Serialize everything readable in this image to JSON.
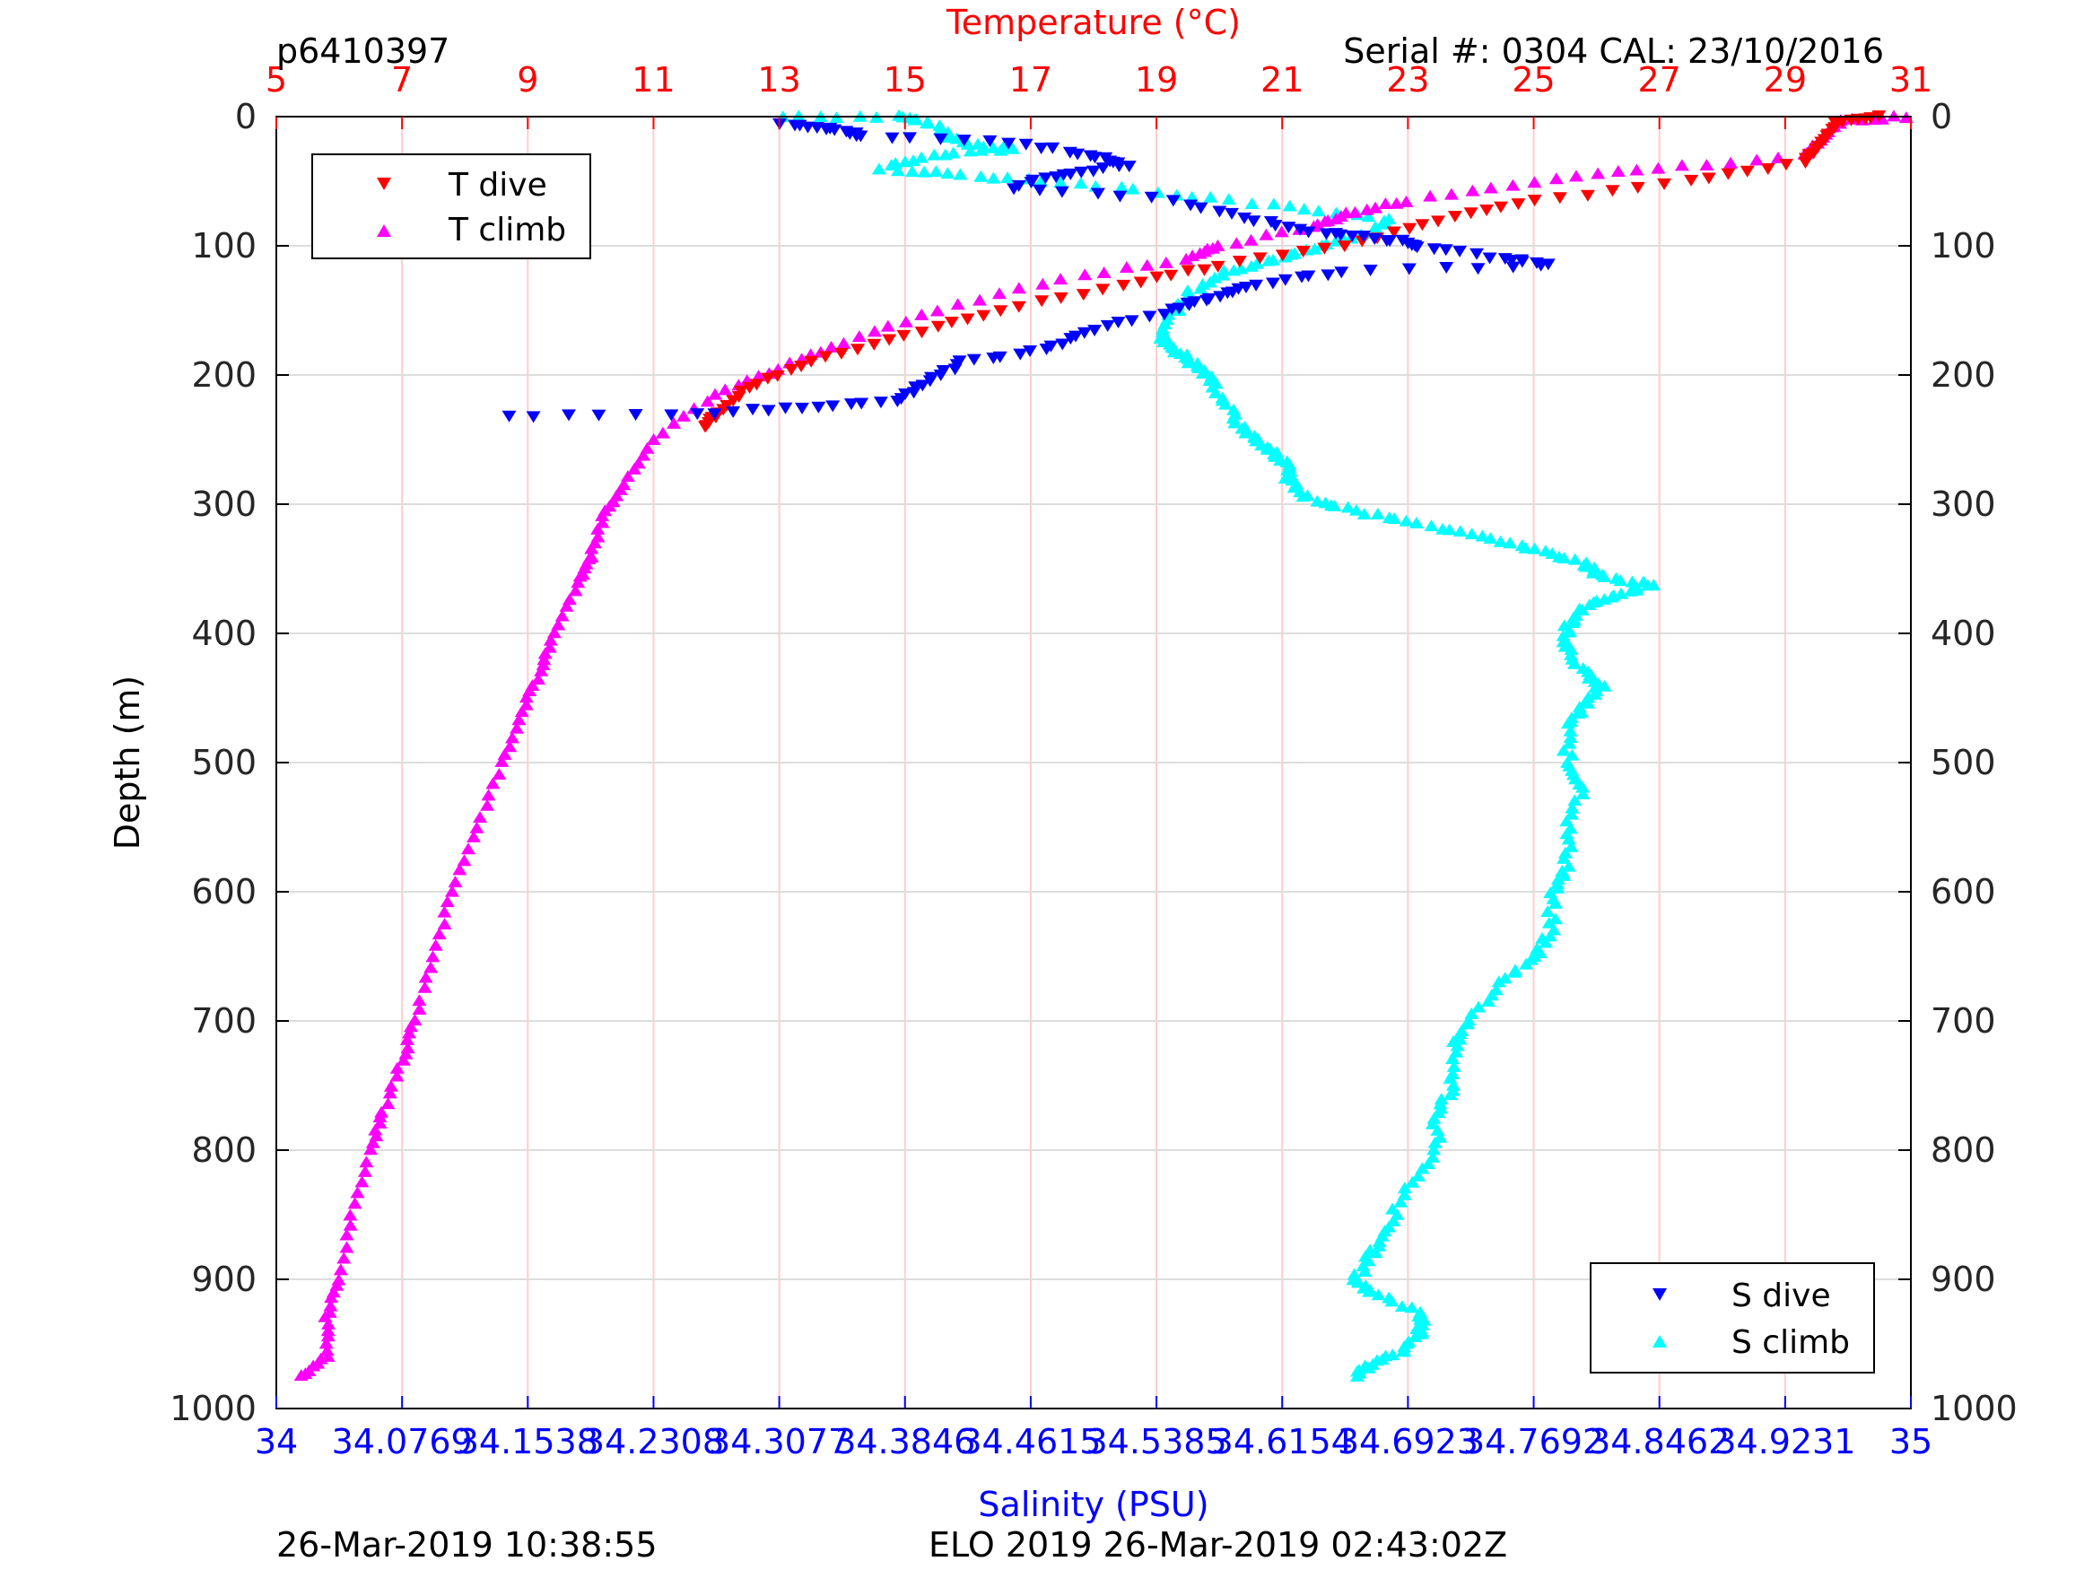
{
  "header": {
    "profile_id": "p6410397",
    "serial": "Serial #: 0304  CAL: 23/10/2016"
  },
  "footer": {
    "left_timestamp": "26-Mar-2019 10:38:55",
    "mission": "ELO 2019 26-Mar-2019 02:43:02Z"
  },
  "colors": {
    "t_dive": "#ff0000",
    "t_climb": "#ff00ff",
    "s_dive": "#0000ff",
    "s_climb": "#00ffff",
    "temp_axis": "#ff0000",
    "sal_axis": "#0000ff",
    "grid_red": "#ffcccc",
    "grid_gray": "#dddddd"
  },
  "chart_data": {
    "type": "scatter",
    "grid": true,
    "y_axis": {
      "label": "Depth (m)",
      "range": [
        0,
        1000
      ],
      "reversed": true,
      "ticks": [
        "0",
        "100",
        "200",
        "300",
        "400",
        "500",
        "600",
        "700",
        "800",
        "900",
        "1000"
      ]
    },
    "temperature_axis": {
      "label": "Temperature (°C)",
      "position": "top",
      "range": [
        5,
        31
      ],
      "ticks": [
        "5",
        "7",
        "9",
        "11",
        "13",
        "15",
        "17",
        "19",
        "21",
        "23",
        "25",
        "27",
        "29",
        "31"
      ]
    },
    "salinity_axis": {
      "label": "Salinity (PSU)",
      "position": "bottom",
      "range": [
        34,
        35
      ],
      "ticks": [
        "34",
        "34.0769",
        "34.1538",
        "34.2308",
        "34.3077",
        "34.3846",
        "34.4615",
        "34.5385",
        "34.6154",
        "34.6923",
        "34.7692",
        "34.8462",
        "34.9231",
        "35"
      ]
    },
    "legends": [
      {
        "placement": "top-left",
        "entries": [
          "T dive",
          "T climb"
        ]
      },
      {
        "placement": "bottom-right",
        "entries": [
          "S dive",
          "S climb"
        ]
      }
    ],
    "series": [
      {
        "name": "T dive",
        "axis": "temperature",
        "marker": "triangle-down",
        "points": [
          [
            30.5,
            0
          ],
          [
            29.8,
            5
          ],
          [
            29.6,
            20
          ],
          [
            29.3,
            35
          ],
          [
            27.5,
            50
          ],
          [
            25.0,
            65
          ],
          [
            23.5,
            80
          ],
          [
            22.0,
            100
          ],
          [
            20.0,
            115
          ],
          [
            18.5,
            130
          ],
          [
            16.5,
            150
          ],
          [
            15.0,
            170
          ],
          [
            13.5,
            190
          ],
          [
            12.5,
            210
          ],
          [
            12.0,
            230
          ],
          [
            11.8,
            240
          ]
        ]
      },
      {
        "name": "T climb",
        "axis": "temperature",
        "marker": "triangle-up",
        "points": [
          [
            30.9,
            0
          ],
          [
            29.9,
            3
          ],
          [
            29.6,
            15
          ],
          [
            29.3,
            30
          ],
          [
            27.0,
            40
          ],
          [
            25.0,
            50
          ],
          [
            23.0,
            65
          ],
          [
            22.0,
            75
          ],
          [
            21.5,
            85
          ],
          [
            20.0,
            100
          ],
          [
            19.5,
            110
          ],
          [
            17.5,
            125
          ],
          [
            15.5,
            150
          ],
          [
            14.0,
            175
          ],
          [
            13.0,
            195
          ],
          [
            12.0,
            215
          ],
          [
            11.0,
            250
          ],
          [
            10.5,
            285
          ],
          [
            10.2,
            310
          ],
          [
            10.0,
            340
          ],
          [
            9.8,
            360
          ],
          [
            9.4,
            400
          ],
          [
            9.2,
            430
          ],
          [
            8.9,
            460
          ],
          [
            8.6,
            500
          ],
          [
            8.2,
            550
          ],
          [
            7.8,
            600
          ],
          [
            7.5,
            650
          ],
          [
            7.2,
            700
          ],
          [
            7.0,
            730
          ],
          [
            6.7,
            770
          ],
          [
            6.5,
            800
          ],
          [
            6.2,
            850
          ],
          [
            6.0,
            900
          ],
          [
            5.8,
            930
          ],
          [
            5.8,
            960
          ],
          [
            5.4,
            975
          ]
        ]
      },
      {
        "name": "S dive",
        "axis": "salinity",
        "marker": "triangle-down",
        "points": [
          [
            34.31,
            5
          ],
          [
            34.34,
            10
          ],
          [
            34.36,
            15
          ],
          [
            34.45,
            20
          ],
          [
            34.5,
            30
          ],
          [
            34.52,
            38
          ],
          [
            34.48,
            45
          ],
          [
            34.45,
            55
          ],
          [
            34.55,
            65
          ],
          [
            34.6,
            80
          ],
          [
            34.64,
            90
          ],
          [
            34.68,
            95
          ],
          [
            34.7,
            100
          ],
          [
            34.75,
            110
          ],
          [
            34.78,
            115
          ],
          [
            34.65,
            120
          ],
          [
            34.6,
            130
          ],
          [
            34.57,
            140
          ],
          [
            34.55,
            150
          ],
          [
            34.5,
            165
          ],
          [
            34.47,
            180
          ],
          [
            34.42,
            190
          ],
          [
            34.4,
            205
          ],
          [
            34.38,
            220
          ],
          [
            34.32,
            225
          ],
          [
            34.26,
            230
          ],
          [
            34.14,
            232
          ]
        ]
      },
      {
        "name": "S climb",
        "axis": "salinity",
        "marker": "triangle-up",
        "points": [
          [
            34.31,
            0
          ],
          [
            34.38,
            0
          ],
          [
            34.4,
            5
          ],
          [
            34.42,
            20
          ],
          [
            34.45,
            25
          ],
          [
            34.4,
            30
          ],
          [
            34.37,
            40
          ],
          [
            34.42,
            45
          ],
          [
            34.48,
            50
          ],
          [
            34.55,
            60
          ],
          [
            34.62,
            70
          ],
          [
            34.68,
            80
          ],
          [
            34.67,
            90
          ],
          [
            34.64,
            100
          ],
          [
            34.61,
            110
          ],
          [
            34.58,
            120
          ],
          [
            34.56,
            135
          ],
          [
            34.55,
            150
          ],
          [
            34.54,
            170
          ],
          [
            34.55,
            180
          ],
          [
            34.56,
            190
          ],
          [
            34.57,
            200
          ],
          [
            34.58,
            220
          ],
          [
            34.59,
            240
          ],
          [
            34.6,
            250
          ],
          [
            34.61,
            260
          ],
          [
            34.62,
            270
          ],
          [
            34.62,
            280
          ],
          [
            34.63,
            295
          ],
          [
            34.66,
            305
          ],
          [
            34.7,
            315
          ],
          [
            34.74,
            325
          ],
          [
            34.77,
            335
          ],
          [
            34.8,
            345
          ],
          [
            34.81,
            355
          ],
          [
            34.84,
            362
          ],
          [
            34.82,
            370
          ],
          [
            34.8,
            380
          ],
          [
            34.79,
            395
          ],
          [
            34.79,
            410
          ],
          [
            34.8,
            430
          ],
          [
            34.81,
            440
          ],
          [
            34.8,
            455
          ],
          [
            34.79,
            470
          ],
          [
            34.79,
            500
          ],
          [
            34.8,
            520
          ],
          [
            34.79,
            550
          ],
          [
            34.79,
            580
          ],
          [
            34.78,
            600
          ],
          [
            34.78,
            630
          ],
          [
            34.77,
            650
          ],
          [
            34.75,
            670
          ],
          [
            34.73,
            700
          ],
          [
            34.72,
            720
          ],
          [
            34.72,
            750
          ],
          [
            34.71,
            770
          ],
          [
            34.71,
            800
          ],
          [
            34.69,
            830
          ],
          [
            34.68,
            860
          ],
          [
            34.67,
            880
          ],
          [
            34.66,
            900
          ],
          [
            34.67,
            910
          ],
          [
            34.7,
            925
          ],
          [
            34.7,
            940
          ],
          [
            34.69,
            955
          ],
          [
            34.67,
            965
          ],
          [
            34.66,
            975
          ]
        ]
      }
    ]
  }
}
